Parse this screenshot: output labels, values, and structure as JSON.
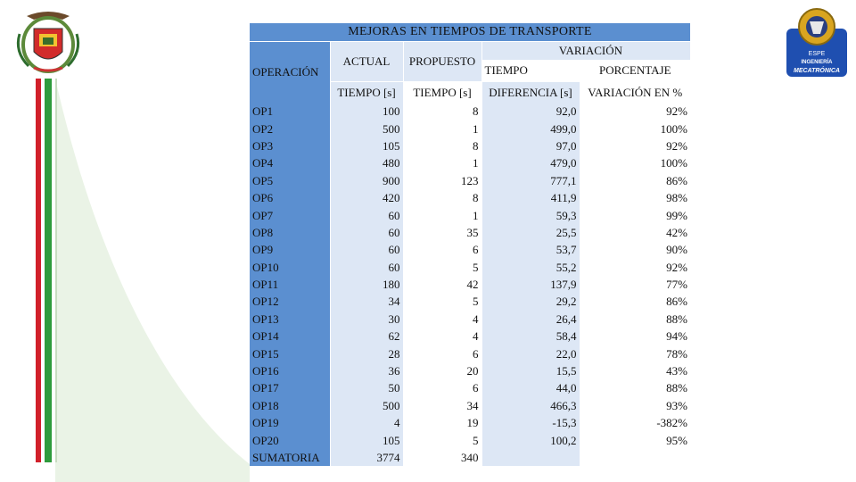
{
  "table": {
    "title": "MEJORAS EN TIEMPOS DE TRANSPORTE",
    "header": {
      "operacion": "OPERACIÓN",
      "actual": "ACTUAL",
      "propuesto": "PROPUESTO",
      "variacion": "VARIACIÓN",
      "tiempo": "TIEMPO",
      "porcentaje": "PORCENTAJE",
      "tiempo_s_actual": "TIEMPO [s]",
      "tiempo_s_propuesto": "TIEMPO [s]",
      "diferencia": "DIFERENCIA [s]",
      "variacion_pct": "VARIACIÓN EN %"
    },
    "rows": [
      {
        "op": "OP1",
        "actual": "100",
        "propuesto": "8",
        "diferencia": "92,0",
        "porcentaje": "92%"
      },
      {
        "op": "OP2",
        "actual": "500",
        "propuesto": "1",
        "diferencia": "499,0",
        "porcentaje": "100%"
      },
      {
        "op": "OP3",
        "actual": "105",
        "propuesto": "8",
        "diferencia": "97,0",
        "porcentaje": "92%"
      },
      {
        "op": "OP4",
        "actual": "480",
        "propuesto": "1",
        "diferencia": "479,0",
        "porcentaje": "100%"
      },
      {
        "op": "OP5",
        "actual": "900",
        "propuesto": "123",
        "diferencia": "777,1",
        "porcentaje": "86%"
      },
      {
        "op": "OP6",
        "actual": "420",
        "propuesto": "8",
        "diferencia": "411,9",
        "porcentaje": "98%"
      },
      {
        "op": "OP7",
        "actual": "60",
        "propuesto": "1",
        "diferencia": "59,3",
        "porcentaje": "99%"
      },
      {
        "op": "OP8",
        "actual": "60",
        "propuesto": "35",
        "diferencia": "25,5",
        "porcentaje": "42%"
      },
      {
        "op": "OP9",
        "actual": "60",
        "propuesto": "6",
        "diferencia": "53,7",
        "porcentaje": "90%"
      },
      {
        "op": "OP10",
        "actual": "60",
        "propuesto": "5",
        "diferencia": "55,2",
        "porcentaje": "92%"
      },
      {
        "op": "OP11",
        "actual": "180",
        "propuesto": "42",
        "diferencia": "137,9",
        "porcentaje": "77%"
      },
      {
        "op": "OP12",
        "actual": "34",
        "propuesto": "5",
        "diferencia": "29,2",
        "porcentaje": "86%"
      },
      {
        "op": "OP13",
        "actual": "30",
        "propuesto": "4",
        "diferencia": "26,4",
        "porcentaje": "88%"
      },
      {
        "op": "OP14",
        "actual": "62",
        "propuesto": "4",
        "diferencia": "58,4",
        "porcentaje": "94%"
      },
      {
        "op": "OP15",
        "actual": "28",
        "propuesto": "6",
        "diferencia": "22,0",
        "porcentaje": "78%"
      },
      {
        "op": "OP16",
        "actual": "36",
        "propuesto": "20",
        "diferencia": "15,5",
        "porcentaje": "43%"
      },
      {
        "op": "OP17",
        "actual": "50",
        "propuesto": "6",
        "diferencia": "44,0",
        "porcentaje": "88%"
      },
      {
        "op": "OP18",
        "actual": "500",
        "propuesto": "34",
        "diferencia": "466,3",
        "porcentaje": "93%"
      },
      {
        "op": "OP19",
        "actual": "4",
        "propuesto": "19",
        "diferencia": "-15,3",
        "porcentaje": "-382%"
      },
      {
        "op": "OP20",
        "actual": "105",
        "propuesto": "5",
        "diferencia": "100,2",
        "porcentaje": "95%"
      },
      {
        "op": "SUMATORIA",
        "actual": "3774",
        "propuesto": "340",
        "diferencia": "",
        "porcentaje": ""
      }
    ]
  },
  "logos": {
    "left": "university-coat-of-arms",
    "right": "espe-ingenieria-mecatronica-logo",
    "right_text_top": "ESPE",
    "right_text_mid": "INGENIERÍA",
    "right_text_bottom": "MECATRÓNICA"
  },
  "colors": {
    "header_blue": "#5b8fd0",
    "row_light": "#dde7f5",
    "stripe_red": "#d1202a",
    "stripe_green": "#2e9b3c",
    "curve_fill": "#eaf3e6"
  }
}
